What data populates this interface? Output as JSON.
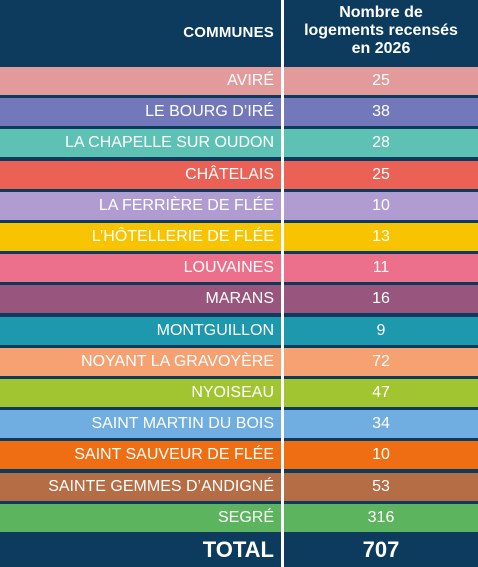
{
  "header": {
    "communes": "COMMUNES",
    "count_line1": "Nombre de",
    "count_line2": "logements recensés",
    "count_line3": "en 2026"
  },
  "rows": [
    {
      "name": "AVIRÉ",
      "value": "25",
      "color": "#e39a9a"
    },
    {
      "name": "LE BOURG D’IRÉ",
      "value": "38",
      "color": "#7278ba"
    },
    {
      "name": "LA CHAPELLE SUR OUDON",
      "value": "28",
      "color": "#5dc2b3"
    },
    {
      "name": "CHÂTELAIS",
      "value": "25",
      "color": "#ec6155"
    },
    {
      "name": "LA FERRIÈRE DE FLÉE",
      "value": "10",
      "color": "#b19cd1"
    },
    {
      "name": "L’HÔTELLERIE DE FLÉE",
      "value": "13",
      "color": "#f8c300"
    },
    {
      "name": "LOUVAINES",
      "value": "11",
      "color": "#ec6f8c"
    },
    {
      "name": "MARANS",
      "value": "16",
      "color": "#98567e"
    },
    {
      "name": "MONTGUILLON",
      "value": "9",
      "color": "#1d98ad"
    },
    {
      "name": "NOYANT LA GRAVOYÈRE",
      "value": "72",
      "color": "#f5a172"
    },
    {
      "name": "NYOISEAU",
      "value": "47",
      "color": "#a1c531"
    },
    {
      "name": "SAINT MARTIN DU BOIS",
      "value": "34",
      "color": "#70ade0"
    },
    {
      "name": "SAINT SAUVEUR DE FLÉE",
      "value": "10",
      "color": "#ef6e13"
    },
    {
      "name": "SAINTE GEMMES D’ANDIGNÉ",
      "value": "53",
      "color": "#b56d46"
    },
    {
      "name": "SEGRÉ",
      "value": "316",
      "color": "#5cb55e"
    }
  ],
  "total": {
    "label": "TOTAL",
    "value": "707"
  }
}
